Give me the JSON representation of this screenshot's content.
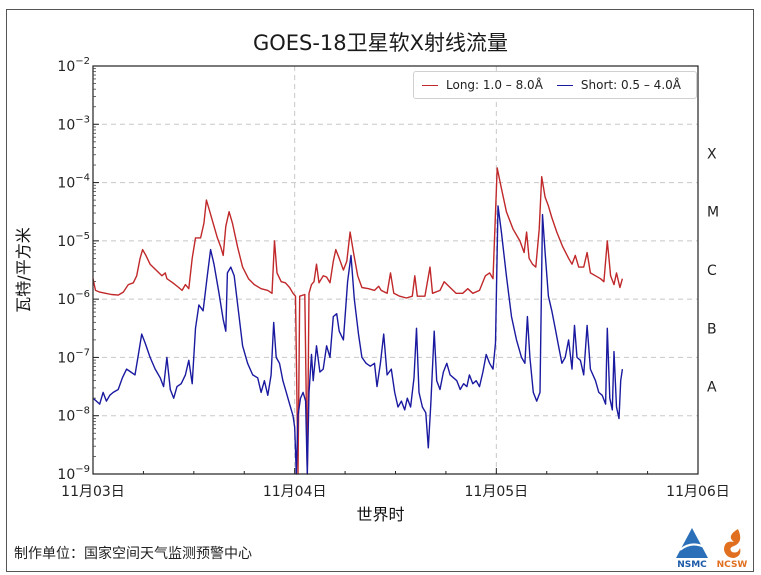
{
  "title": "GOES-18卫星软X射线流量",
  "xlabel": "世界时",
  "ylabel": "瓦特/平方米",
  "footer": "制作单位：国家空间天气监测预警中心",
  "logos": [
    {
      "name": "NSMC",
      "color": "#1a5aa8"
    },
    {
      "name": "NCSW",
      "color": "#e07020"
    }
  ],
  "legend": [
    {
      "label": "Long: 1.0 – 8.0Å",
      "color": "#c0282a"
    },
    {
      "label": "Short: 0.5 – 4.0Å",
      "color": "#1a1aa0"
    }
  ],
  "yticks": [
    {
      "exp": "-2",
      "base": "10"
    },
    {
      "exp": "-3",
      "base": "10"
    },
    {
      "exp": "-4",
      "base": "10"
    },
    {
      "exp": "-5",
      "base": "10"
    },
    {
      "exp": "-6",
      "base": "10"
    },
    {
      "exp": "-7",
      "base": "10"
    },
    {
      "exp": "-8",
      "base": "10"
    },
    {
      "exp": "-9",
      "base": "10"
    }
  ],
  "xticks": [
    "11月03日",
    "11月04日",
    "11月05日",
    "11月06日"
  ],
  "flare_classes": [
    "X",
    "M",
    "C",
    "B",
    "A"
  ],
  "chart_data": {
    "type": "line",
    "title": "GOES-18卫星软X射线流量",
    "xlabel": "世界时",
    "ylabel": "瓦特/平方米",
    "yscale": "log",
    "ylim": [
      1e-09,
      0.01
    ],
    "xlim_hours_from_11-03_00UT": [
      0,
      72
    ],
    "x_tick_labels": [
      "11月03日",
      "11月04日",
      "11月05日",
      "11月06日"
    ],
    "y_tick_labels": [
      "10^-2",
      "10^-3",
      "10^-4",
      "10^-5",
      "10^-6",
      "10^-7",
      "10^-8",
      "10^-9"
    ],
    "flare_class_labels": {
      "X": "1e-4 to 1e-3",
      "M": "1e-5 to 1e-4",
      "C": "1e-6 to 1e-5",
      "B": "1e-7 to 1e-6",
      "A": "1e-8 to 1e-7"
    },
    "grid": true,
    "legend_position": "upper right",
    "x_unit": "hours since 11-03 00:00 UT",
    "series": [
      {
        "name": "Long: 1.0 – 8.0Å",
        "color": "#c0282a",
        "points": [
          [
            0.0,
            -5.65
          ],
          [
            0.3,
            -5.85
          ],
          [
            0.8,
            -5.88
          ],
          [
            1.5,
            -5.9
          ],
          [
            2.2,
            -5.92
          ],
          [
            3.0,
            -5.93
          ],
          [
            3.6,
            -5.88
          ],
          [
            4.2,
            -5.75
          ],
          [
            4.8,
            -5.72
          ],
          [
            5.2,
            -5.6
          ],
          [
            5.6,
            -5.3
          ],
          [
            5.9,
            -5.15
          ],
          [
            6.3,
            -5.25
          ],
          [
            6.8,
            -5.4
          ],
          [
            7.5,
            -5.5
          ],
          [
            8.2,
            -5.6
          ],
          [
            8.6,
            -5.55
          ],
          [
            8.8,
            -5.65
          ],
          [
            9.5,
            -5.72
          ],
          [
            10.2,
            -5.8
          ],
          [
            10.6,
            -5.85
          ],
          [
            11.0,
            -5.75
          ],
          [
            11.4,
            -5.82
          ],
          [
            11.8,
            -5.3
          ],
          [
            12.2,
            -4.95
          ],
          [
            12.8,
            -4.95
          ],
          [
            13.2,
            -4.7
          ],
          [
            13.5,
            -4.3
          ],
          [
            13.8,
            -4.45
          ],
          [
            14.3,
            -4.7
          ],
          [
            14.8,
            -4.95
          ],
          [
            15.2,
            -5.1
          ],
          [
            15.5,
            -5.25
          ],
          [
            15.8,
            -4.75
          ],
          [
            16.2,
            -4.5
          ],
          [
            16.6,
            -4.7
          ],
          [
            17.2,
            -5.1
          ],
          [
            17.8,
            -5.45
          ],
          [
            18.5,
            -5.65
          ],
          [
            19.2,
            -5.75
          ],
          [
            20.0,
            -5.82
          ],
          [
            20.8,
            -5.85
          ],
          [
            21.3,
            -5.9
          ],
          [
            21.6,
            -5.0
          ],
          [
            21.9,
            -5.55
          ],
          [
            22.4,
            -5.7
          ],
          [
            22.9,
            -5.72
          ],
          [
            23.4,
            -5.8
          ],
          [
            23.8,
            -5.9
          ],
          [
            24.1,
            -5.95
          ],
          [
            24.4,
            -9.0
          ],
          [
            24.6,
            -5.95
          ],
          [
            25.2,
            -5.92
          ],
          [
            25.5,
            -9.0
          ],
          [
            25.7,
            -5.9
          ],
          [
            26.0,
            -5.75
          ],
          [
            26.3,
            -5.7
          ],
          [
            26.6,
            -5.4
          ],
          [
            26.9,
            -5.72
          ],
          [
            27.4,
            -5.6
          ],
          [
            27.8,
            -5.62
          ],
          [
            28.2,
            -5.72
          ],
          [
            28.6,
            -5.35
          ],
          [
            28.9,
            -5.15
          ],
          [
            29.3,
            -5.3
          ],
          [
            29.8,
            -5.5
          ],
          [
            30.2,
            -5.35
          ],
          [
            30.6,
            -4.85
          ],
          [
            31.0,
            -5.2
          ],
          [
            31.5,
            -5.6
          ],
          [
            32.0,
            -5.8
          ],
          [
            32.8,
            -5.82
          ],
          [
            33.5,
            -5.85
          ],
          [
            34.0,
            -5.78
          ],
          [
            34.3,
            -5.85
          ],
          [
            35.0,
            -5.9
          ],
          [
            35.4,
            -5.55
          ],
          [
            35.8,
            -5.9
          ],
          [
            36.5,
            -5.95
          ],
          [
            37.3,
            -5.98
          ],
          [
            38.0,
            -5.95
          ],
          [
            38.3,
            -5.6
          ],
          [
            38.6,
            -5.95
          ],
          [
            39.5,
            -5.95
          ],
          [
            40.1,
            -5.45
          ],
          [
            40.4,
            -5.9
          ],
          [
            41.3,
            -5.85
          ],
          [
            41.8,
            -5.7
          ],
          [
            42.5,
            -5.8
          ],
          [
            43.2,
            -5.9
          ],
          [
            44.0,
            -5.9
          ],
          [
            44.6,
            -5.82
          ],
          [
            45.2,
            -5.9
          ],
          [
            46.0,
            -5.85
          ],
          [
            46.7,
            -5.6
          ],
          [
            47.2,
            -5.55
          ],
          [
            47.6,
            -5.65
          ],
          [
            48.1,
            -3.75
          ],
          [
            48.6,
            -4.1
          ],
          [
            49.2,
            -4.5
          ],
          [
            50.0,
            -4.8
          ],
          [
            50.8,
            -5.0
          ],
          [
            51.3,
            -5.2
          ],
          [
            51.6,
            -4.85
          ],
          [
            51.9,
            -5.3
          ],
          [
            52.3,
            -5.4
          ],
          [
            52.7,
            -5.45
          ],
          [
            53.1,
            -4.8
          ],
          [
            53.4,
            -3.9
          ],
          [
            53.8,
            -4.25
          ],
          [
            54.2,
            -4.4
          ],
          [
            54.6,
            -4.6
          ],
          [
            55.2,
            -4.85
          ],
          [
            55.9,
            -5.1
          ],
          [
            56.6,
            -5.3
          ],
          [
            57.0,
            -5.4
          ],
          [
            57.4,
            -5.25
          ],
          [
            57.8,
            -5.45
          ],
          [
            58.4,
            -5.45
          ],
          [
            58.8,
            -5.2
          ],
          [
            59.2,
            -5.55
          ],
          [
            59.8,
            -5.6
          ],
          [
            60.4,
            -5.65
          ],
          [
            60.8,
            -5.7
          ],
          [
            61.2,
            -5.0
          ],
          [
            61.6,
            -5.6
          ],
          [
            62.0,
            -5.75
          ],
          [
            62.3,
            -5.55
          ],
          [
            62.7,
            -5.8
          ],
          [
            63.0,
            -5.65
          ]
        ]
      },
      {
        "name": "Short: 0.5 – 4.0Å",
        "color": "#1a1aa0",
        "points": [
          [
            0.0,
            -7.7
          ],
          [
            0.4,
            -7.75
          ],
          [
            0.8,
            -7.8
          ],
          [
            1.2,
            -7.6
          ],
          [
            1.6,
            -7.75
          ],
          [
            2.0,
            -7.65
          ],
          [
            2.4,
            -7.6
          ],
          [
            3.0,
            -7.55
          ],
          [
            3.5,
            -7.35
          ],
          [
            4.0,
            -7.2
          ],
          [
            4.5,
            -7.25
          ],
          [
            5.0,
            -7.3
          ],
          [
            5.4,
            -6.95
          ],
          [
            5.8,
            -6.6
          ],
          [
            6.2,
            -6.75
          ],
          [
            6.8,
            -7.0
          ],
          [
            7.4,
            -7.2
          ],
          [
            8.0,
            -7.35
          ],
          [
            8.4,
            -7.5
          ],
          [
            8.8,
            -7.0
          ],
          [
            9.2,
            -7.55
          ],
          [
            9.6,
            -7.7
          ],
          [
            10.0,
            -7.5
          ],
          [
            10.5,
            -7.45
          ],
          [
            11.0,
            -7.3
          ],
          [
            11.4,
            -7.05
          ],
          [
            11.8,
            -7.45
          ],
          [
            12.2,
            -6.5
          ],
          [
            12.6,
            -6.1
          ],
          [
            13.1,
            -6.2
          ],
          [
            13.6,
            -5.6
          ],
          [
            14.0,
            -5.15
          ],
          [
            14.4,
            -5.4
          ],
          [
            15.0,
            -5.9
          ],
          [
            15.5,
            -6.35
          ],
          [
            15.8,
            -6.55
          ],
          [
            16.0,
            -5.55
          ],
          [
            16.4,
            -5.45
          ],
          [
            16.8,
            -5.6
          ],
          [
            17.3,
            -6.2
          ],
          [
            17.8,
            -6.8
          ],
          [
            18.4,
            -7.1
          ],
          [
            19.0,
            -7.3
          ],
          [
            19.6,
            -7.35
          ],
          [
            20.0,
            -7.6
          ],
          [
            20.4,
            -7.4
          ],
          [
            20.8,
            -7.65
          ],
          [
            21.2,
            -7.3
          ],
          [
            21.5,
            -6.4
          ],
          [
            21.8,
            -7.0
          ],
          [
            22.2,
            -7.1
          ],
          [
            22.6,
            -7.4
          ],
          [
            23.0,
            -7.6
          ],
          [
            23.4,
            -7.8
          ],
          [
            23.8,
            -8.0
          ],
          [
            24.0,
            -8.2
          ],
          [
            24.2,
            -9.0
          ],
          [
            24.4,
            -8.0
          ],
          [
            24.7,
            -7.7
          ],
          [
            25.0,
            -7.6
          ],
          [
            25.3,
            -7.75
          ],
          [
            25.5,
            -9.0
          ],
          [
            25.7,
            -7.6
          ],
          [
            26.0,
            -6.95
          ],
          [
            26.2,
            -7.4
          ],
          [
            26.6,
            -6.8
          ],
          [
            27.0,
            -7.25
          ],
          [
            27.4,
            -7.2
          ],
          [
            27.8,
            -6.8
          ],
          [
            28.2,
            -7.0
          ],
          [
            28.6,
            -6.3
          ],
          [
            29.0,
            -6.25
          ],
          [
            29.3,
            -6.55
          ],
          [
            29.8,
            -6.7
          ],
          [
            30.3,
            -5.7
          ],
          [
            30.7,
            -5.25
          ],
          [
            31.1,
            -6.0
          ],
          [
            31.6,
            -6.6
          ],
          [
            32.0,
            -7.0
          ],
          [
            32.5,
            -7.1
          ],
          [
            33.0,
            -7.15
          ],
          [
            33.5,
            -7.1
          ],
          [
            33.8,
            -7.5
          ],
          [
            34.2,
            -7.1
          ],
          [
            34.6,
            -6.6
          ],
          [
            35.0,
            -7.3
          ],
          [
            35.5,
            -7.2
          ],
          [
            35.9,
            -7.6
          ],
          [
            36.3,
            -7.85
          ],
          [
            36.7,
            -7.75
          ],
          [
            37.1,
            -7.9
          ],
          [
            37.4,
            -7.7
          ],
          [
            37.8,
            -7.85
          ],
          [
            38.2,
            -7.35
          ],
          [
            38.5,
            -6.5
          ],
          [
            38.8,
            -7.6
          ],
          [
            39.2,
            -7.85
          ],
          [
            39.6,
            -7.95
          ],
          [
            39.9,
            -8.55
          ],
          [
            40.2,
            -7.8
          ],
          [
            40.6,
            -6.55
          ],
          [
            40.9,
            -7.4
          ],
          [
            41.3,
            -7.55
          ],
          [
            41.7,
            -7.25
          ],
          [
            42.1,
            -7.1
          ],
          [
            42.5,
            -7.3
          ],
          [
            42.9,
            -7.35
          ],
          [
            43.3,
            -7.4
          ],
          [
            43.7,
            -7.55
          ],
          [
            44.1,
            -7.45
          ],
          [
            44.5,
            -7.5
          ],
          [
            44.8,
            -7.3
          ],
          [
            45.2,
            -7.45
          ],
          [
            45.6,
            -7.4
          ],
          [
            46.0,
            -7.5
          ],
          [
            46.4,
            -7.25
          ],
          [
            46.8,
            -6.95
          ],
          [
            47.2,
            -7.1
          ],
          [
            47.6,
            -7.2
          ],
          [
            47.9,
            -6.75
          ],
          [
            48.2,
            -4.4
          ],
          [
            48.6,
            -4.85
          ],
          [
            49.2,
            -5.6
          ],
          [
            49.8,
            -6.3
          ],
          [
            50.4,
            -6.7
          ],
          [
            51.0,
            -7.0
          ],
          [
            51.4,
            -7.1
          ],
          [
            51.7,
            -6.3
          ],
          [
            52.0,
            -7.0
          ],
          [
            52.4,
            -7.6
          ],
          [
            52.8,
            -7.75
          ],
          [
            53.2,
            -7.6
          ],
          [
            53.5,
            -4.55
          ],
          [
            53.8,
            -5.2
          ],
          [
            54.2,
            -5.95
          ],
          [
            54.6,
            -6.2
          ],
          [
            55.0,
            -6.5
          ],
          [
            55.4,
            -6.8
          ],
          [
            55.8,
            -7.1
          ],
          [
            56.2,
            -7.0
          ],
          [
            56.6,
            -6.7
          ],
          [
            57.0,
            -7.2
          ],
          [
            57.3,
            -6.45
          ],
          [
            57.6,
            -7.0
          ],
          [
            58.0,
            -7.05
          ],
          [
            58.4,
            -7.3
          ],
          [
            58.8,
            -6.45
          ],
          [
            59.2,
            -7.2
          ],
          [
            59.8,
            -7.4
          ],
          [
            60.2,
            -7.6
          ],
          [
            60.6,
            -7.65
          ],
          [
            61.0,
            -7.8
          ],
          [
            61.2,
            -6.5
          ],
          [
            61.5,
            -7.7
          ],
          [
            61.8,
            -7.9
          ],
          [
            62.0,
            -6.9
          ],
          [
            62.3,
            -7.85
          ],
          [
            62.6,
            -8.05
          ],
          [
            62.8,
            -7.4
          ],
          [
            63.0,
            -7.2
          ]
        ]
      }
    ]
  }
}
